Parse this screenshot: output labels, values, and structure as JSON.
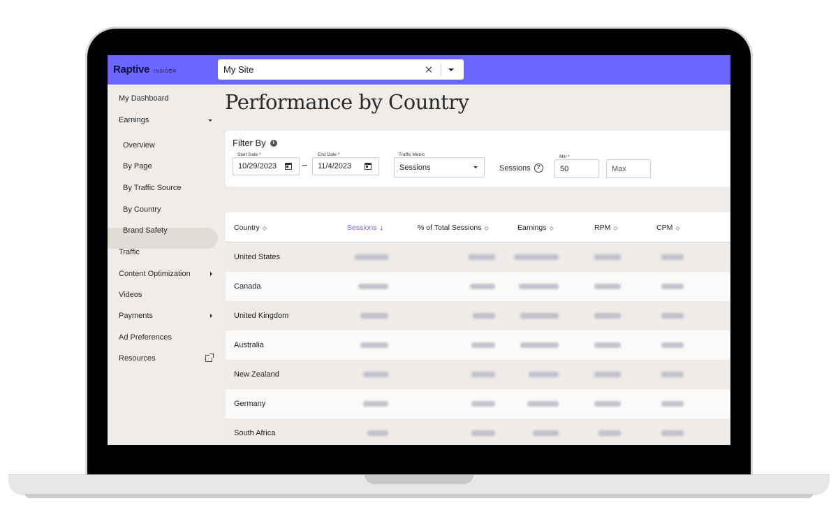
{
  "brand": {
    "name": "Raptive",
    "sub": "INSIDER"
  },
  "site_select": {
    "value": "My Site",
    "clear_glyph": "✕"
  },
  "sidebar": {
    "items": [
      {
        "label": "My Dashboard"
      },
      {
        "label": "Earnings",
        "caret": "down"
      },
      {
        "label": "Overview"
      },
      {
        "label": "By Page"
      },
      {
        "label": "By Traffic Source"
      },
      {
        "label": "By Country",
        "active": true
      },
      {
        "label": "Brand Safety"
      },
      {
        "label": "Traffic"
      },
      {
        "label": "Content Optimization",
        "caret": "right"
      },
      {
        "label": "Videos"
      },
      {
        "label": "Payments",
        "caret": "right"
      },
      {
        "label": "Ad Preferences"
      },
      {
        "label": "Resources",
        "icon": "external-link-icon"
      }
    ]
  },
  "page_title": "Performance by Country",
  "filters": {
    "title": "Filter By",
    "start_date": {
      "label": "Start Date *",
      "value": "10/29/2023"
    },
    "end_date": {
      "label": "End Date *",
      "value": "11/4/2023"
    },
    "dash": "–",
    "traffic_metric": {
      "label": "Traffic Metric",
      "value": "Sessions"
    },
    "sessions_label": "Sessions",
    "min": {
      "label": "Min *",
      "value": "50"
    },
    "max": {
      "placeholder": "Max"
    }
  },
  "table": {
    "columns": [
      {
        "label": "Country",
        "sort": "both"
      },
      {
        "label": "Sessions",
        "sort": "desc",
        "active": true
      },
      {
        "label": "% of Total Sessions",
        "sort": "both"
      },
      {
        "label": "Earnings",
        "sort": "both"
      },
      {
        "label": "RPM",
        "sort": "both"
      },
      {
        "label": "CPM",
        "sort": "both"
      }
    ],
    "rows": [
      {
        "country": "United States"
      },
      {
        "country": "Canada"
      },
      {
        "country": "United Kingdom"
      },
      {
        "country": "Australia"
      },
      {
        "country": "New Zealand"
      },
      {
        "country": "Germany"
      },
      {
        "country": "South Africa"
      }
    ]
  },
  "colors": {
    "accent": "#6b66ff",
    "background": "#efecea"
  }
}
